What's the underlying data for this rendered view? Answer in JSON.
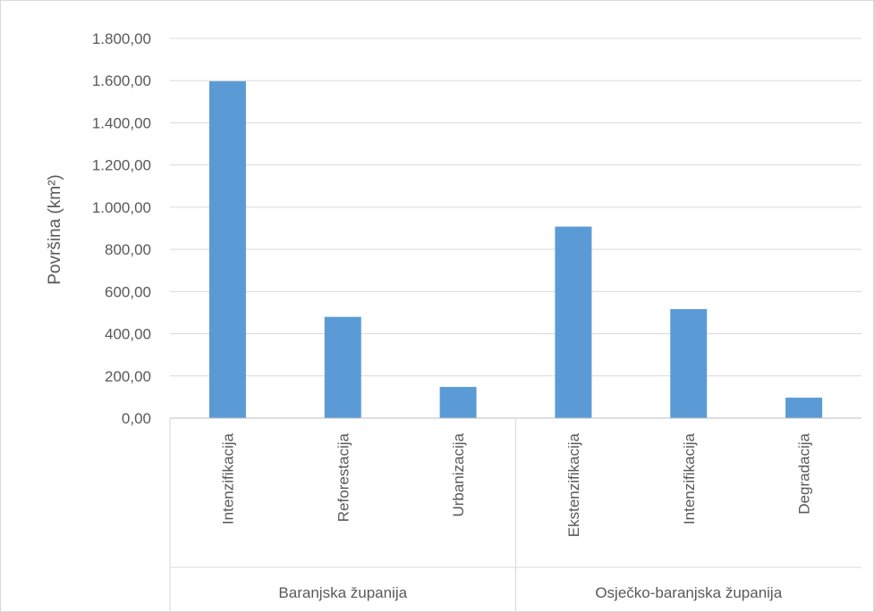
{
  "chart_data": {
    "type": "bar",
    "title": "",
    "xlabel": "",
    "ylabel": "Površina (km²)",
    "ylim": [
      0,
      1800
    ],
    "ytick_values": [
      0,
      200,
      400,
      600,
      800,
      1000,
      1200,
      1400,
      1600,
      1800
    ],
    "ytick_labels": [
      "0,00",
      "200,00",
      "400,00",
      "600,00",
      "800,00",
      "1.000,00",
      "1.200,00",
      "1.400,00",
      "1.600,00",
      "1.800,00"
    ],
    "grid": true,
    "legend": "none",
    "groups": [
      {
        "name": "Baranjska županija",
        "categories": [
          "Intenzifikacija",
          "Reforestacija",
          "Urbanizacija"
        ]
      },
      {
        "name": "Osječko-baranjska županija",
        "categories": [
          "Ekstenzifikacija",
          "Intenzifikacija",
          "Degradacija"
        ]
      }
    ],
    "categories": [
      "Intenzifikacija",
      "Reforestacija",
      "Urbanizacija",
      "Ekstenzifikacija",
      "Intenzifikacija",
      "Degradacija"
    ],
    "values": [
      1597,
      480,
      148,
      908,
      517,
      97
    ],
    "colors": {
      "bar": "#5b9bd5",
      "grid": "#d9d9d9",
      "axis": "#bfbfbf",
      "text": "#595959"
    }
  }
}
